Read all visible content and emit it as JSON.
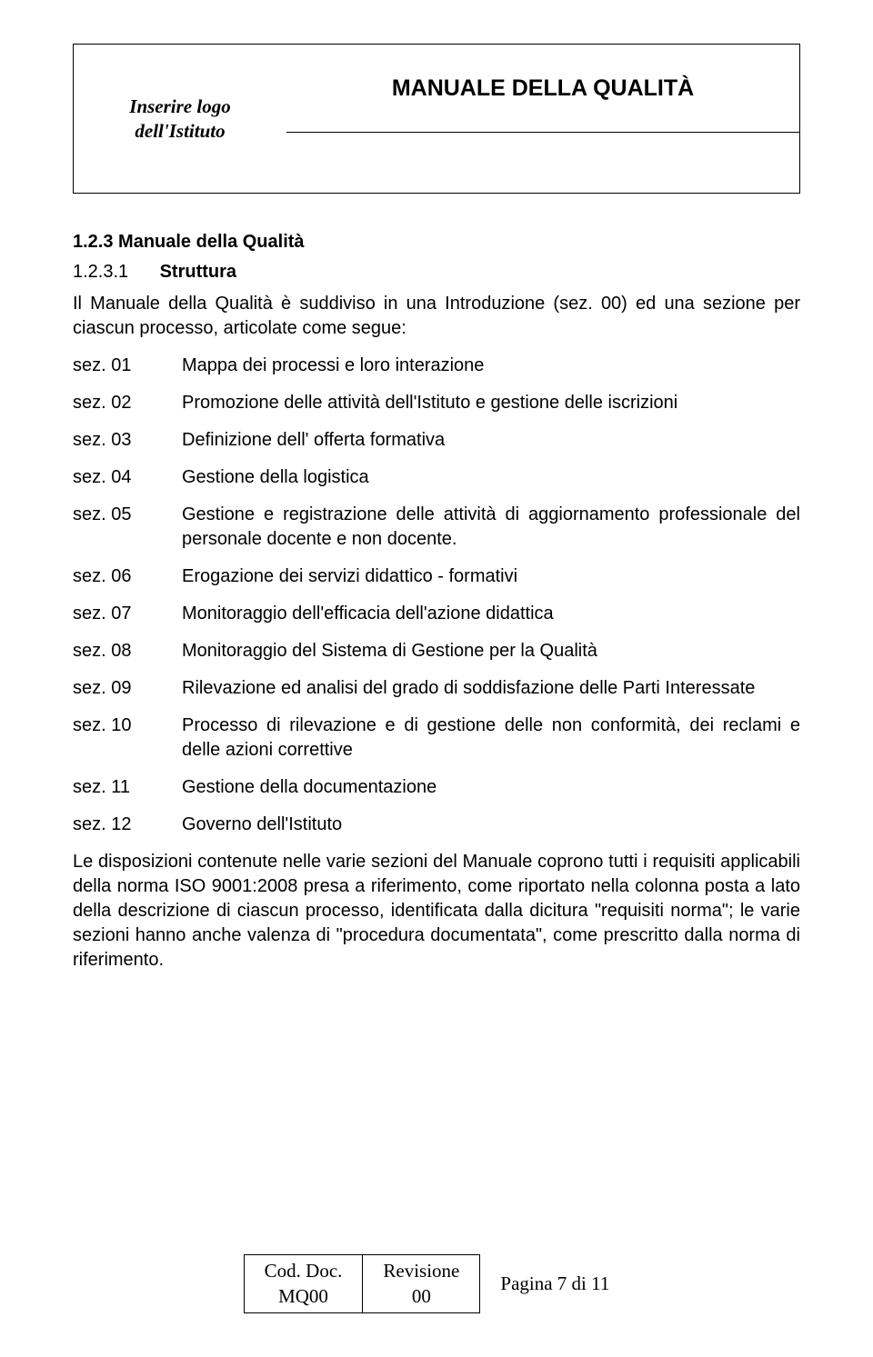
{
  "header": {
    "logo_line1": "Inserire logo",
    "logo_line2": "dell'Istituto",
    "title": "MANUALE DELLA QUALITÀ"
  },
  "section": {
    "num_main": "1.2.3 Manuale della Qualità",
    "sub_num": "1.2.3.1",
    "sub_title": "Struttura",
    "intro": "Il Manuale della Qualità è suddiviso in una Introduzione (sez. 00) ed una sezione per ciascun processo, articolate come segue:"
  },
  "rows": [
    {
      "key": "sez. 01",
      "val": "Mappa dei processi e loro interazione"
    },
    {
      "key": "sez. 02",
      "val": "Promozione delle attività dell'Istituto e gestione delle iscrizioni"
    },
    {
      "key": "sez. 03",
      "val": "Definizione dell' offerta formativa"
    },
    {
      "key": "sez. 04",
      "val": "Gestione della logistica"
    },
    {
      "key": "sez. 05",
      "val": "Gestione e registrazione delle attività di aggiornamento professionale del personale docente e non docente."
    },
    {
      "key": "sez. 06",
      "val": "Erogazione dei servizi didattico - formativi"
    },
    {
      "key": "sez. 07",
      "val": "Monitoraggio dell'efficacia dell'azione didattica"
    },
    {
      "key": "sez. 08",
      "val": "Monitoraggio del Sistema di Gestione per la Qualità"
    },
    {
      "key": "sez. 09",
      "val": "Rilevazione ed analisi del grado di soddisfazione delle Parti Interessate"
    },
    {
      "key": "sez. 10",
      "val": "Processo di rilevazione e di gestione delle non conformità, dei reclami e delle azioni correttive"
    },
    {
      "key": "sez. 11",
      "val": "Gestione della documentazione"
    },
    {
      "key": "sez. 12",
      "val": "Governo dell'Istituto"
    }
  ],
  "closing": "Le disposizioni contenute nelle varie sezioni del Manuale coprono tutti i requisiti applicabili della norma ISO 9001:2008 presa a riferimento, come riportato nella colonna posta a lato della descrizione di ciascun processo, identificata dalla dicitura \"requisiti norma\"; le varie sezioni hanno anche valenza di \"procedura documentata\", come prescritto dalla norma di riferimento.",
  "footer": {
    "c1a": "Cod. Doc.",
    "c1b": "MQ00",
    "c2a": "Revisione",
    "c2b": "00",
    "c3": "Pagina 7 di 11"
  }
}
